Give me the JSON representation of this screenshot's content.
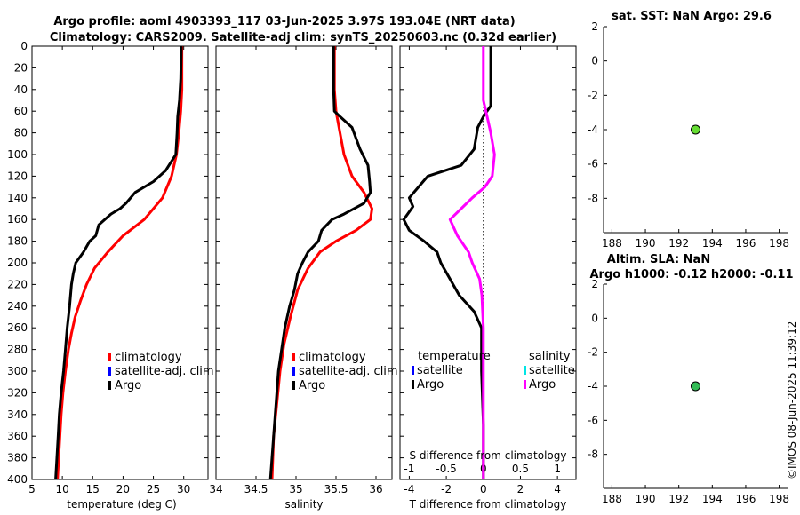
{
  "titles": {
    "line1": "Argo profile: aoml 4903393_117 03-Jun-2025 3.97S 193.04E (NRT data)",
    "line2": "Climatology: CARS2009. Satellite-adj clim: synTS_20250603.nc (0.32d earlier)",
    "sst": "sat. SST: NaN Argo: 29.6",
    "sla1": "Altim. SLA: NaN",
    "sla2": "Argo h1000: -0.12 h2000: -0.11",
    "watermark": "©IMOS 08-Jun-2025 11:39:12"
  },
  "colors": {
    "climatology": "#ff0000",
    "satellite": "#0000ff",
    "argo": "#000000",
    "salinity_sat": "#00e5e5",
    "salinity_diff": "#ff00ff",
    "sst_marker": "#66dd33",
    "sla_marker": "#33bb55"
  },
  "legends": {
    "profile": [
      "climatology",
      "satellite-adj. clim",
      "Argo"
    ],
    "diff_t_title": "temperature",
    "diff_t": [
      "satellite",
      "Argo"
    ],
    "diff_s_title": "salinity",
    "diff_s": [
      "satellite",
      "Argo"
    ]
  },
  "chart_data": [
    {
      "type": "line",
      "name": "temperature",
      "xlabel": "temperature (deg C)",
      "xlim": [
        5,
        34
      ],
      "xticks": [
        "5",
        "10",
        "15",
        "20",
        "25",
        "30"
      ],
      "ylim": [
        400,
        0
      ],
      "yticks": [
        "0",
        "20",
        "40",
        "60",
        "80",
        "100",
        "120",
        "140",
        "160",
        "180",
        "200",
        "220",
        "240",
        "260",
        "280",
        "300",
        "320",
        "340",
        "360",
        "380",
        "400"
      ],
      "series": [
        {
          "name": "climatology",
          "points": [
            [
              29.7,
              0
            ],
            [
              29.7,
              40
            ],
            [
              29.5,
              60
            ],
            [
              29.2,
              80
            ],
            [
              28.8,
              100
            ],
            [
              28.0,
              120
            ],
            [
              26.5,
              140
            ],
            [
              23.5,
              160
            ],
            [
              20.0,
              175
            ],
            [
              17.5,
              190
            ],
            [
              15.3,
              205
            ],
            [
              14.0,
              220
            ],
            [
              13.0,
              235
            ],
            [
              12.1,
              250
            ],
            [
              11.5,
              265
            ],
            [
              11.0,
              280
            ],
            [
              10.5,
              300
            ],
            [
              10.1,
              320
            ],
            [
              9.8,
              340
            ],
            [
              9.6,
              360
            ],
            [
              9.4,
              380
            ],
            [
              9.2,
              400
            ]
          ]
        },
        {
          "name": "Argo",
          "points": [
            [
              29.6,
              0
            ],
            [
              29.5,
              30
            ],
            [
              29.3,
              50
            ],
            [
              29.0,
              65
            ],
            [
              28.9,
              80
            ],
            [
              28.7,
              100
            ],
            [
              27.0,
              115
            ],
            [
              25.0,
              125
            ],
            [
              22.0,
              135
            ],
            [
              20.5,
              145
            ],
            [
              19.5,
              150
            ],
            [
              18.0,
              155
            ],
            [
              17.0,
              160
            ],
            [
              16.0,
              165
            ],
            [
              15.5,
              175
            ],
            [
              14.5,
              180
            ],
            [
              13.5,
              190
            ],
            [
              12.2,
              200
            ],
            [
              11.8,
              210
            ],
            [
              11.5,
              220
            ],
            [
              11.2,
              240
            ],
            [
              10.8,
              260
            ],
            [
              10.5,
              280
            ],
            [
              10.2,
              300
            ],
            [
              9.8,
              320
            ],
            [
              9.5,
              340
            ],
            [
              9.3,
              360
            ],
            [
              9.1,
              380
            ],
            [
              8.9,
              400
            ]
          ]
        }
      ]
    },
    {
      "type": "line",
      "name": "salinity",
      "xlabel": "salinity",
      "xlim": [
        34,
        36.2
      ],
      "xticks": [
        "34",
        "34.5",
        "35",
        "35.5",
        "36"
      ],
      "ylim": [
        400,
        0
      ],
      "series": [
        {
          "name": "climatology",
          "points": [
            [
              35.48,
              0
            ],
            [
              35.48,
              40
            ],
            [
              35.5,
              60
            ],
            [
              35.55,
              80
            ],
            [
              35.6,
              100
            ],
            [
              35.7,
              120
            ],
            [
              35.85,
              135
            ],
            [
              35.95,
              150
            ],
            [
              35.93,
              160
            ],
            [
              35.75,
              170
            ],
            [
              35.5,
              180
            ],
            [
              35.3,
              190
            ],
            [
              35.15,
              205
            ],
            [
              35.02,
              225
            ],
            [
              34.93,
              250
            ],
            [
              34.85,
              275
            ],
            [
              34.8,
              300
            ],
            [
              34.76,
              330
            ],
            [
              34.72,
              360
            ],
            [
              34.7,
              400
            ]
          ]
        },
        {
          "name": "Argo",
          "points": [
            [
              35.47,
              0
            ],
            [
              35.47,
              40
            ],
            [
              35.48,
              60
            ],
            [
              35.55,
              65
            ],
            [
              35.7,
              75
            ],
            [
              35.75,
              85
            ],
            [
              35.8,
              95
            ],
            [
              35.9,
              110
            ],
            [
              35.92,
              125
            ],
            [
              35.93,
              135
            ],
            [
              35.85,
              145
            ],
            [
              35.6,
              155
            ],
            [
              35.45,
              160
            ],
            [
              35.32,
              170
            ],
            [
              35.28,
              180
            ],
            [
              35.15,
              190
            ],
            [
              35.08,
              200
            ],
            [
              35.02,
              210
            ],
            [
              34.98,
              225
            ],
            [
              34.92,
              240
            ],
            [
              34.86,
              260
            ],
            [
              34.82,
              280
            ],
            [
              34.78,
              300
            ],
            [
              34.76,
              320
            ],
            [
              34.74,
              340
            ],
            [
              34.72,
              360
            ],
            [
              34.7,
              380
            ],
            [
              34.68,
              400
            ]
          ]
        }
      ]
    },
    {
      "type": "line",
      "name": "differences",
      "xlabel": "T difference from climatology",
      "xlabel_top": "S difference from climatology",
      "xlim": [
        -4.5,
        5
      ],
      "xticks": [
        "-4",
        "-2",
        "0",
        "2",
        "4"
      ],
      "xlim_top": [
        -1.125,
        1.25
      ],
      "xticks_top": [
        "-1",
        "-0.5",
        "0",
        "0.5",
        "1"
      ],
      "ylim": [
        400,
        0
      ],
      "zero_line": 0,
      "series": [
        {
          "name": "T Argo diff",
          "points": [
            [
              0.4,
              0
            ],
            [
              0.4,
              30
            ],
            [
              0.4,
              55
            ],
            [
              0.0,
              65
            ],
            [
              -0.3,
              75
            ],
            [
              -0.5,
              95
            ],
            [
              -1.2,
              110
            ],
            [
              -3.0,
              120
            ],
            [
              -3.5,
              130
            ],
            [
              -4.0,
              140
            ],
            [
              -3.8,
              148
            ],
            [
              -4.3,
              160
            ],
            [
              -4.0,
              170
            ],
            [
              -3.2,
              180
            ],
            [
              -2.5,
              190
            ],
            [
              -2.3,
              200
            ],
            [
              -1.8,
              215
            ],
            [
              -1.3,
              230
            ],
            [
              -0.5,
              245
            ],
            [
              -0.1,
              260
            ],
            [
              -0.1,
              300
            ],
            [
              0.0,
              350
            ],
            [
              0.0,
              400
            ]
          ]
        },
        {
          "name": "S Argo diff",
          "points": [
            [
              0.0,
              0
            ],
            [
              0.0,
              50
            ],
            [
              0.05,
              65
            ],
            [
              0.1,
              80
            ],
            [
              0.15,
              100
            ],
            [
              0.12,
              120
            ],
            [
              0.02,
              130
            ],
            [
              -0.15,
              140
            ],
            [
              -0.3,
              150
            ],
            [
              -0.45,
              160
            ],
            [
              -0.35,
              175
            ],
            [
              -0.2,
              190
            ],
            [
              -0.15,
              200
            ],
            [
              -0.05,
              215
            ],
            [
              -0.02,
              230
            ],
            [
              0.0,
              260
            ],
            [
              0.0,
              400
            ]
          ]
        }
      ]
    },
    {
      "type": "scatter",
      "name": "sst",
      "xlim": [
        187.5,
        198.5
      ],
      "xticks": [
        "188",
        "190",
        "192",
        "194",
        "196",
        "198"
      ],
      "ylim": [
        -10,
        2
      ],
      "yticks": [
        "2",
        "0",
        "-2",
        "-4",
        "-6",
        "-8"
      ],
      "points": [
        [
          193,
          -4
        ]
      ]
    },
    {
      "type": "scatter",
      "name": "sla",
      "xlim": [
        187.5,
        198.5
      ],
      "xticks": [
        "188",
        "190",
        "192",
        "194",
        "196",
        "198"
      ],
      "ylim": [
        -10,
        2
      ],
      "yticks": [
        "2",
        "0",
        "-2",
        "-4",
        "-6",
        "-8"
      ],
      "points": [
        [
          193,
          -4
        ]
      ]
    }
  ]
}
